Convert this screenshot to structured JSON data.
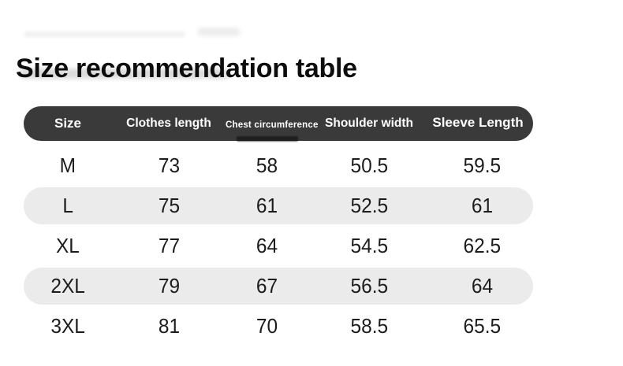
{
  "title": "Size recommendation table",
  "table": {
    "colors": {
      "header_bg": "#3a3a3a",
      "header_text": "#ffffff",
      "stripe_bg": "#ebebeb",
      "body_text": "#1c1c1c",
      "page_bg": "#ffffff"
    },
    "columns": [
      {
        "label": "Size"
      },
      {
        "label": "Clothes length"
      },
      {
        "label": "Chest circumference"
      },
      {
        "label": "Shoulder width"
      },
      {
        "label": "Sleeve Length"
      }
    ],
    "rows": [
      {
        "cells": [
          "M",
          "73",
          "58",
          "50.5",
          "59.5"
        ]
      },
      {
        "cells": [
          "L",
          "75",
          "61",
          "52.5",
          "61"
        ]
      },
      {
        "cells": [
          "XL",
          "77",
          "64",
          "54.5",
          "62.5"
        ]
      },
      {
        "cells": [
          "2XL",
          "79",
          "67",
          "56.5",
          "64"
        ]
      },
      {
        "cells": [
          "3XL",
          "81",
          "70",
          "58.5",
          "65.5"
        ]
      }
    ]
  }
}
